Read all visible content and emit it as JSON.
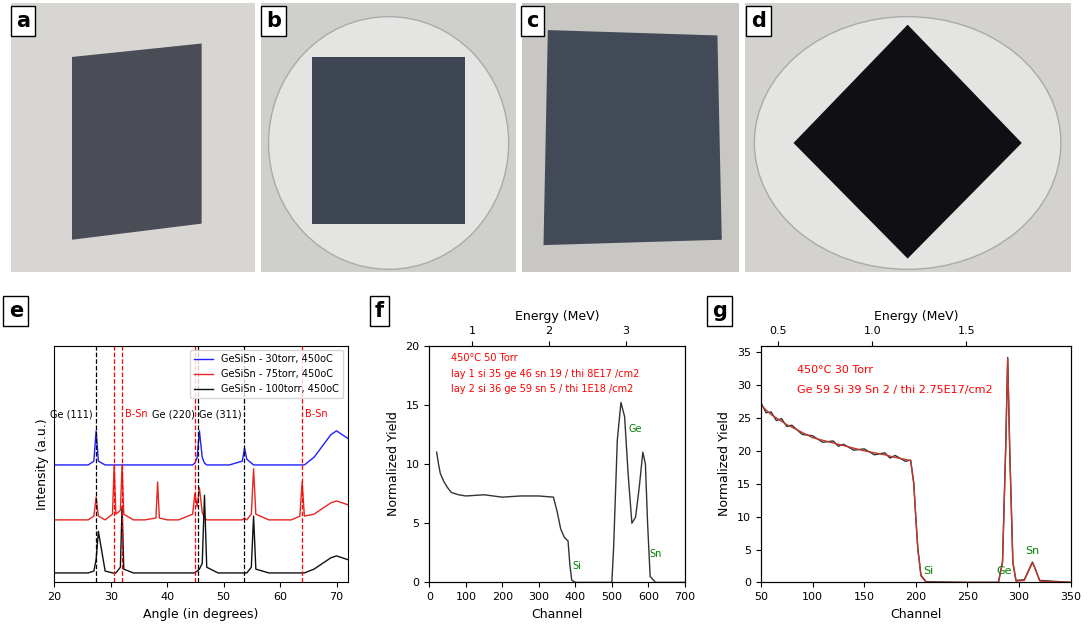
{
  "photos": [
    {
      "panel": "a"
    },
    {
      "panel": "b"
    },
    {
      "panel": "c"
    },
    {
      "panel": "d"
    }
  ],
  "chart_data": [
    {
      "type": "line",
      "panel": "e",
      "xlabel": "Angle (in degrees)",
      "ylabel": "Intensity (a.u.)",
      "x": [
        20,
        22,
        24,
        26,
        27.0,
        27.4,
        27.8,
        29,
        30.3,
        30.6,
        30.9,
        31.7,
        32.0,
        32.3,
        34,
        36,
        38.0,
        38.3,
        38.6,
        40,
        42,
        44.5,
        44.9,
        45.3,
        45.7,
        46.2,
        46.6,
        47.0,
        49,
        51,
        53.3,
        53.7,
        54.1,
        54.9,
        55.3,
        55.7,
        58,
        60,
        62,
        63.5,
        63.9,
        64.3,
        66,
        68,
        69,
        70,
        71,
        72
      ],
      "series": [
        {
          "name": "GeSiSn - 30torr, 450oC",
          "color": "#1f1fff",
          "line_style": "solid",
          "values": [
            0.62,
            0.62,
            0.62,
            0.62,
            0.64,
            0.8,
            0.64,
            0.62,
            0.62,
            0.62,
            0.62,
            0.62,
            0.62,
            0.62,
            0.62,
            0.62,
            0.62,
            0.62,
            0.62,
            0.62,
            0.62,
            0.62,
            0.63,
            0.66,
            0.8,
            0.66,
            0.63,
            0.62,
            0.62,
            0.62,
            0.64,
            0.71,
            0.65,
            0.63,
            0.62,
            0.62,
            0.62,
            0.62,
            0.62,
            0.62,
            0.62,
            0.62,
            0.66,
            0.74,
            0.78,
            0.8,
            0.78,
            0.76
          ]
        },
        {
          "name": "GeSiSn - 75torr, 450oC",
          "color": "#e8251f",
          "line_style": "solid",
          "values": [
            0.33,
            0.33,
            0.33,
            0.33,
            0.35,
            0.45,
            0.35,
            0.33,
            0.36,
            0.62,
            0.36,
            0.38,
            0.62,
            0.36,
            0.33,
            0.33,
            0.34,
            0.53,
            0.34,
            0.33,
            0.33,
            0.36,
            0.47,
            0.4,
            0.5,
            0.37,
            0.34,
            0.33,
            0.33,
            0.33,
            0.33,
            0.34,
            0.33,
            0.36,
            0.6,
            0.36,
            0.33,
            0.33,
            0.33,
            0.35,
            0.53,
            0.35,
            0.36,
            0.4,
            0.42,
            0.43,
            0.42,
            0.41
          ]
        },
        {
          "name": "GeSiSn - 100torr, 450oC",
          "color": "#111111",
          "line_style": "solid",
          "values": [
            0.05,
            0.05,
            0.05,
            0.05,
            0.06,
            0.12,
            0.27,
            0.06,
            0.05,
            0.05,
            0.05,
            0.08,
            0.4,
            0.07,
            0.05,
            0.05,
            0.05,
            0.05,
            0.05,
            0.05,
            0.05,
            0.05,
            0.05,
            0.06,
            0.07,
            0.1,
            0.46,
            0.08,
            0.05,
            0.05,
            0.05,
            0.05,
            0.05,
            0.08,
            0.35,
            0.07,
            0.05,
            0.05,
            0.05,
            0.05,
            0.05,
            0.05,
            0.07,
            0.11,
            0.13,
            0.14,
            0.13,
            0.12
          ]
        }
      ],
      "xlim": [
        20,
        72
      ],
      "ylim": [
        0,
        1.25
      ],
      "xticks": [
        20,
        30,
        40,
        50,
        60,
        70
      ],
      "yticks": [],
      "tick_labels": "x",
      "legend": "upper right",
      "reference_lines": [
        {
          "x": 27.3,
          "color": "black",
          "line_style": "dashed",
          "label": "Ge (111)"
        },
        {
          "x": 30.6,
          "color": "red",
          "line_style": "dashed"
        },
        {
          "x": 32.0,
          "color": "red",
          "line_style": "dashed",
          "label": "B-Sn"
        },
        {
          "x": 44.9,
          "color": "red",
          "line_style": "dashed"
        },
        {
          "x": 45.4,
          "color": "black",
          "line_style": "dashed",
          "label": "Ge (220)"
        },
        {
          "x": 53.6,
          "color": "black",
          "line_style": "dashed",
          "label": "Ge (311)"
        },
        {
          "x": 63.9,
          "color": "red",
          "line_style": "dashed",
          "label": "B-Sn"
        }
      ]
    },
    {
      "type": "line",
      "panel": "f",
      "xlabel": "Channel",
      "ylabel": "Normalized Yield",
      "x": [
        20,
        25,
        30,
        40,
        50,
        60,
        80,
        100,
        150,
        200,
        250,
        300,
        340,
        350,
        360,
        370,
        380,
        385,
        390,
        400,
        450,
        500,
        505,
        515,
        525,
        535,
        545,
        555,
        565,
        575,
        585,
        592,
        598,
        605,
        620,
        700
      ],
      "series": [
        {
          "color": "#333333",
          "line_style": "solid",
          "values": [
            11,
            10,
            9.2,
            8.5,
            8,
            7.6,
            7.4,
            7.3,
            7.4,
            7.2,
            7.3,
            7.3,
            7.2,
            6,
            4.5,
            3.8,
            3.5,
            1.5,
            0.2,
            0,
            0,
            0,
            3,
            12,
            15.2,
            14,
            9,
            5,
            5.5,
            8,
            11,
            10,
            5,
            0.5,
            0,
            0
          ]
        }
      ],
      "xlim": [
        0,
        700
      ],
      "ylim": [
        0,
        20
      ],
      "xticks": [
        0,
        100,
        200,
        300,
        400,
        500,
        600,
        700
      ],
      "yticks": [
        0,
        5,
        10,
        15,
        20
      ],
      "top_axis": {
        "label": "Energy (MeV)",
        "lim": [
          0.44,
          3.77
        ],
        "ticks": [
          1,
          2,
          3
        ]
      },
      "annotations": [
        {
          "text": "450°C 50 Torr",
          "x": 60,
          "y": 18.5,
          "color": "red"
        },
        {
          "text": "lay 1 si 35 ge 46 sn 19 / thi 8E17 /cm2",
          "x": 60,
          "y": 17.2,
          "color": "red"
        },
        {
          "text": "lay 2 si 36 ge 59 sn 5 / thi 1E18 /cm2",
          "x": 60,
          "y": 15.9,
          "color": "red"
        },
        {
          "text": "Si",
          "x": 392,
          "y": 1.0,
          "color": "green"
        },
        {
          "text": "Ge",
          "x": 545,
          "y": 12.5,
          "color": "green"
        },
        {
          "text": "Sn",
          "x": 602,
          "y": 2.0,
          "color": "green"
        }
      ]
    },
    {
      "type": "line",
      "panel": "g",
      "xlabel": "Channel",
      "ylabel": "Normalized Yield",
      "x": [
        50,
        55,
        60,
        65,
        70,
        75,
        80,
        90,
        100,
        110,
        120,
        125,
        130,
        140,
        150,
        160,
        170,
        175,
        180,
        190,
        195,
        198,
        200,
        202,
        205,
        210,
        250,
        280,
        284,
        287,
        289,
        291,
        294,
        297,
        305,
        310,
        313,
        316,
        320,
        350
      ],
      "series": [
        {
          "color": "#333333",
          "line_style": "solid",
          "values": [
            27.3,
            25.8,
            25.9,
            24.6,
            24.9,
            23.7,
            23.9,
            22.5,
            22.3,
            21.3,
            21.5,
            20.7,
            21.0,
            20.1,
            20.3,
            19.4,
            19.7,
            18.9,
            19.3,
            18.4,
            18.6,
            15.2,
            9.8,
            5.1,
            1.1,
            0.1,
            0,
            0,
            3.2,
            20.3,
            34.2,
            19.8,
            3.1,
            0.3,
            0.4,
            2.1,
            3.1,
            1.9,
            0.3,
            0
          ]
        },
        {
          "color": "#c0392b",
          "line_style": "solid",
          "values": [
            27,
            26.2,
            25.5,
            25,
            24.5,
            24,
            23.6,
            22.8,
            22,
            21.6,
            21.2,
            21,
            20.8,
            20.4,
            20,
            19.7,
            19.4,
            19.2,
            19,
            18.7,
            18.5,
            15,
            10,
            5,
            1,
            0,
            0,
            0,
            3,
            20,
            34,
            20,
            3,
            0.2,
            0.3,
            2,
            3,
            2,
            0.2,
            0
          ]
        }
      ],
      "xlim": [
        50,
        350
      ],
      "ylim": [
        0,
        36
      ],
      "xticks": [
        50,
        100,
        150,
        200,
        250,
        300,
        350
      ],
      "yticks": [
        0,
        5,
        10,
        15,
        20,
        25,
        30,
        35
      ],
      "top_axis": {
        "label": "Energy (MeV)",
        "lim": [
          0.407,
          2.054
        ],
        "ticks": [
          0.5,
          1.0,
          1.5
        ]
      },
      "annotations": [
        {
          "text": "450°C 30 Torr",
          "x": 85,
          "y": 31.5,
          "color": "red"
        },
        {
          "text": "Ge 59 Si 39 Sn 2 / thi 2.75E17/cm2",
          "x": 85,
          "y": 28.5,
          "color": "red"
        },
        {
          "text": "Si",
          "x": 207,
          "y": 1.0,
          "color": "green"
        },
        {
          "text": "Ge",
          "x": 278,
          "y": 1.0,
          "color": "green"
        },
        {
          "text": "Sn",
          "x": 306,
          "y": 4.0,
          "color": "green"
        }
      ]
    }
  ]
}
